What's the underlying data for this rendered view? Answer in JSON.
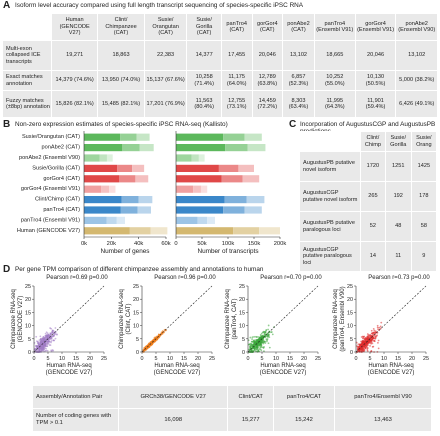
{
  "panelA": {
    "letter": "A",
    "title": "Isoform level accuracy compared using full length transcript sequencing of species-specific iPSC RNA",
    "columns": [
      "Human (GENCODE V27)",
      "Clint/ Chimpanzee (CAT)",
      "Susie/ Orangutan (CAT)",
      "Susie/ Gorilla (CAT)",
      "panTro4 (CAT)",
      "gorGor4 (CAT)",
      "ponAbe2 (CAT)",
      "panTro4 (Ensembl V91)",
      "gorGor4 (Ensembl V91)",
      "ponAbe2 (Ensembl V90)"
    ],
    "rows": [
      {
        "label": "Multi-exon collapsed ICE transcripts",
        "values": [
          "19,271",
          "18,863",
          "22,383",
          "14,377",
          "17,455",
          "20,046",
          "13,102",
          "18,665",
          "20,046",
          "13,102"
        ]
      },
      {
        "label": "Exact matches annotation",
        "values": [
          "14,379 (74.6%)",
          "13,950 (74.0%)",
          "15,137 (67.6%)",
          "10,258 (71.4%)",
          "11,175 (64.0%)",
          "12,789 (63.8%)",
          "6,857 (52.3%)",
          "10,252 (55.0%)",
          "10,130 (50.5%)",
          "5,000 (38.2%)"
        ]
      },
      {
        "label": "Fuzzy matches (±8bp) annotation",
        "values": [
          "15,826 (82.1%)",
          "15,485 (82.1%)",
          "17,201 (76.9%)",
          "11,563 (80.4%)",
          "12,755 (73.1%)",
          "14,459 (72.2%)",
          "8,303 (63.4%)",
          "11,995 (64.3%)",
          "11,901 (59.4%)",
          "6,426 (49.1%)"
        ]
      }
    ]
  },
  "panelB": {
    "letter": "B",
    "title": "Non-zero expression estimates of species-specific iPSC RNA-seq (Kallisto)"
  },
  "panelC": {
    "letter": "C",
    "title": "Incorporation of AugustusCGP and AugustusPB predictions",
    "columns": [
      "Clint/ Chimp",
      "Susie/ Gorilla",
      "Susie/ Orang"
    ],
    "rows": [
      {
        "label": "AugustusPB putative novel isoform",
        "values": [
          "1720",
          "1251",
          "1425"
        ]
      },
      {
        "label": "AugustusCGP putative novel isoform",
        "values": [
          "265",
          "192",
          "178"
        ]
      },
      {
        "label": "AugustusPB putative paralogous loci",
        "values": [
          "52",
          "48",
          "58"
        ]
      },
      {
        "label": "AugustusCGP putative paralogous loci",
        "values": [
          "14",
          "11",
          "9"
        ]
      }
    ]
  },
  "panelD": {
    "letter": "D",
    "title": "Per gene TPM comparison of different chimpanzee assembly and annotations to human",
    "scatters": [
      {
        "pearson": "Pearson r=0.69 p=0.00",
        "ylabel1": "Chimpanzee RNA-seq",
        "ylabel2": "(GENCODE V27)",
        "xlabel1": "Human RNA-seq",
        "xlabel2": "(GENCODE V27)",
        "color": "#a07cc5"
      },
      {
        "pearson": "Pearson r=0.96 p=0.00",
        "ylabel1": "Chimpanzee RNA-seq",
        "ylabel2": "(Clint, CAT)",
        "xlabel1": "Human RNA-seq",
        "xlabel2": "(GENCODE V27)",
        "color": "#f07f1e"
      },
      {
        "pearson": "Pearson r=0.70 p=0.00",
        "ylabel1": "Chimpanzee RNA-seq",
        "ylabel2": "(panTro4, CAT)",
        "xlabel1": "Human RNA-seq",
        "xlabel2": "(GENCODE V27)",
        "color": "#3aa53a"
      },
      {
        "pearson": "Pearson r=0.73 p=0.00",
        "ylabel1": "Chimpanzee RNA-seq",
        "ylabel2": "(panTro4, Ensembl V90)",
        "xlabel1": "Human RNA-seq",
        "xlabel2": "(GENCODE V27)",
        "color": "#de2c2c"
      }
    ],
    "table": {
      "columns": [
        "Assembly/Annotation Pair",
        "GRCh38/GENCODE V27",
        "Clint/CAT",
        "panTro4/CAT",
        "panTro4/Ensembl V90"
      ],
      "row": {
        "label": "Number of coding genes with TPM > 0.1",
        "values": [
          "16,098",
          "15,277",
          "15,242",
          "13,463"
        ]
      }
    }
  },
  "chart_data": [
    {
      "type": "bar",
      "orientation": "horizontal",
      "stacked": true,
      "categories": [
        "Susie/Orangutan (CAT)",
        "ponAbe2 (CAT)",
        "ponAbe2 (Ensembl V90)",
        "Susie/Gorilla (CAT)",
        "gorGor4 (CAT)",
        "gorGor4 (Ensembl V91)",
        "Clint/Chimp (CAT)",
        "panTro4 (CAT)",
        "panTro4 (Ensembl V91)",
        "Human (GENCODE V27)"
      ],
      "colors": [
        "#5cb85c",
        "#5cb85c",
        "#9ed69e",
        "#e04848",
        "#e04848",
        "#f0a0a0",
        "#3a87c9",
        "#3a87c9",
        "#9cc4e6",
        "#d4b870"
      ],
      "segments": [
        [
          48000,
          51000,
          21000,
          44000,
          47000,
          23000,
          50000,
          49000,
          30000,
          61000
        ],
        [
          0,
          0,
          0,
          0,
          0,
          0,
          0,
          0,
          0,
          0
        ]
      ],
      "xlim": [
        0,
        60000
      ],
      "xticks": [
        "0k",
        "20k",
        "40k",
        "60k"
      ],
      "xlabel": "Number of genes"
    },
    {
      "type": "bar",
      "orientation": "horizontal",
      "stacked": true,
      "categories": [
        "Susie/Orangutan (CAT)",
        "ponAbe2 (CAT)",
        "ponAbe2 (Ensembl V90)",
        "Susie/Gorilla (CAT)",
        "gorGor4 (CAT)",
        "gorGor4 (Ensembl V91)",
        "Clint/Chimp (CAT)",
        "panTro4 (CAT)",
        "panTro4 (Ensembl V91)",
        "Human (GENCODE V27)"
      ],
      "colors": [
        "#5cb85c",
        "#5cb85c",
        "#9ed69e",
        "#e04848",
        "#e04848",
        "#f0a0a0",
        "#3a87c9",
        "#3a87c9",
        "#9cc4e6",
        "#d4b870"
      ],
      "values": [
        165000,
        172000,
        55000,
        150000,
        160000,
        60000,
        170000,
        165000,
        75000,
        200000
      ],
      "xlim": [
        0,
        200000
      ],
      "xticks": [
        "0",
        "50k",
        "100k",
        "150k",
        "200k"
      ],
      "xlabel": "Number of transcripts"
    },
    {
      "type": "scatter",
      "xlim": [
        0,
        25
      ],
      "ylim": [
        0,
        25
      ],
      "xticks": [
        "0",
        "5",
        "10",
        "15",
        "20",
        "25"
      ],
      "yticks": [
        "0",
        "5",
        "10",
        "15",
        "20",
        "25"
      ]
    }
  ]
}
